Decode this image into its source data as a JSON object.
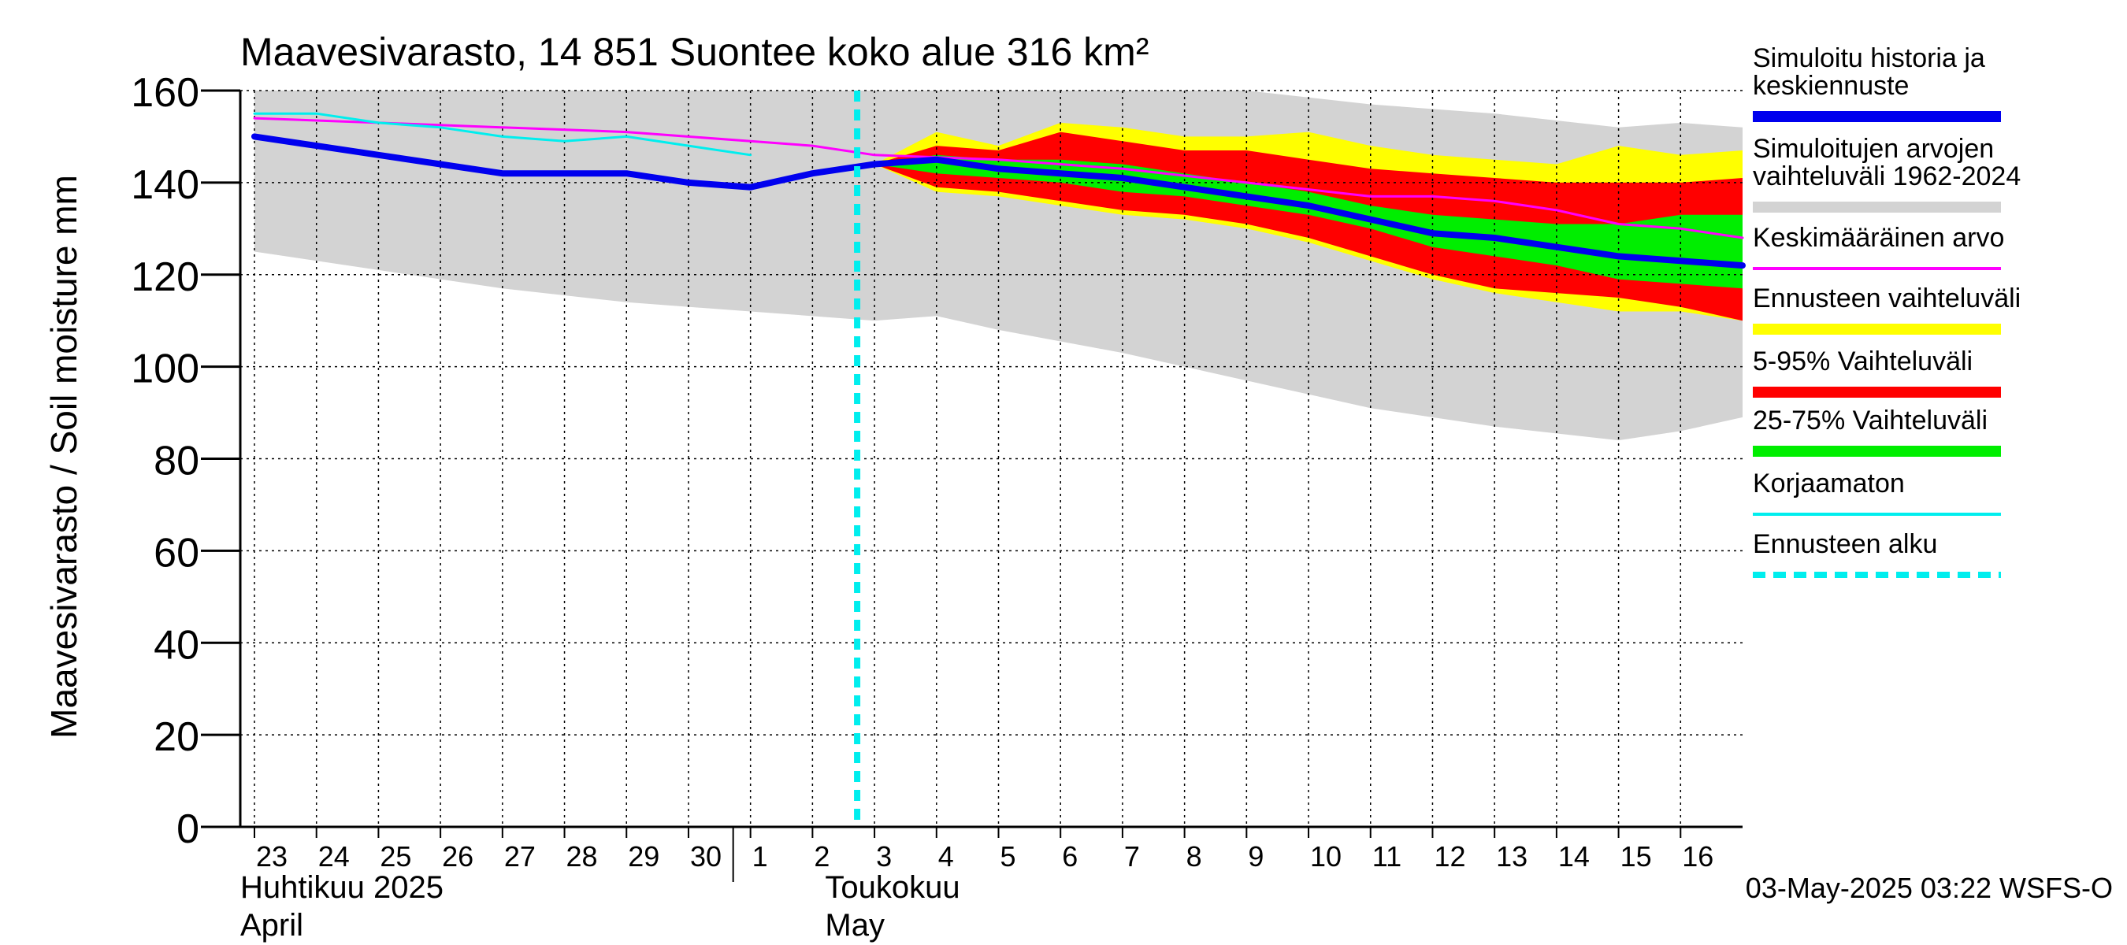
{
  "chart_data": {
    "type": "area",
    "title": "Maavesivarasto, 14 851 Suontee koko alue 316 km²",
    "ylabel": "Maavesivarasto / Soil moisture   mm",
    "ylim": [
      0,
      160
    ],
    "yticks": [
      0,
      20,
      40,
      60,
      80,
      100,
      120,
      140,
      160
    ],
    "xlim": [
      0,
      24
    ],
    "grid": true,
    "x_ticks": [
      {
        "x": 0,
        "label": "23"
      },
      {
        "x": 1,
        "label": "24"
      },
      {
        "x": 2,
        "label": "25"
      },
      {
        "x": 3,
        "label": "26"
      },
      {
        "x": 4,
        "label": "27"
      },
      {
        "x": 5,
        "label": "28"
      },
      {
        "x": 6,
        "label": "29"
      },
      {
        "x": 7,
        "label": "30"
      },
      {
        "x": 8,
        "label": "1"
      },
      {
        "x": 9,
        "label": "2"
      },
      {
        "x": 10,
        "label": "3"
      },
      {
        "x": 11,
        "label": "4"
      },
      {
        "x": 12,
        "label": "5"
      },
      {
        "x": 13,
        "label": "6"
      },
      {
        "x": 14,
        "label": "7"
      },
      {
        "x": 15,
        "label": "8"
      },
      {
        "x": 16,
        "label": "9"
      },
      {
        "x": 17,
        "label": "10"
      },
      {
        "x": 18,
        "label": "11"
      },
      {
        "x": 19,
        "label": "12"
      },
      {
        "x": 20,
        "label": "13"
      },
      {
        "x": 21,
        "label": "14"
      },
      {
        "x": 22,
        "label": "15"
      },
      {
        "x": 23,
        "label": "16"
      }
    ],
    "month_labels": [
      {
        "x": 0,
        "line1": "Huhtikuu  2025",
        "line2": "April"
      },
      {
        "x": 9,
        "line1": "Toukokuu",
        "line2": "May"
      }
    ],
    "month_boundary_x": 8,
    "forecast_start_x": 10,
    "series": [
      {
        "name": "Simuloitujen arvojen vaihteluväli 1962-2024",
        "kind": "band",
        "color": "#d3d3d3",
        "x": [
          0,
          2,
          4,
          6,
          8,
          10,
          11,
          12,
          14,
          16,
          18,
          20,
          22,
          23,
          24
        ],
        "low": [
          125,
          121,
          117,
          114,
          112,
          110,
          111,
          108,
          103,
          97,
          91,
          87,
          84,
          86,
          89
        ],
        "high": [
          160,
          160,
          160,
          160,
          160,
          160,
          160,
          160,
          160,
          160,
          157,
          155,
          152,
          153,
          152
        ]
      },
      {
        "name": "Ennusteen vaihteluväli",
        "kind": "band",
        "color": "#ffff00",
        "x": [
          10,
          11,
          12,
          13,
          14,
          15,
          16,
          17,
          18,
          19,
          20,
          21,
          22,
          23,
          24
        ],
        "low": [
          144,
          138,
          137,
          135,
          133,
          132,
          130,
          127,
          123,
          119,
          116,
          114,
          112,
          112,
          110
        ],
        "high": [
          144,
          151,
          148,
          153,
          152,
          150,
          150,
          151,
          148,
          146,
          145,
          144,
          148,
          146,
          147
        ]
      },
      {
        "name": "5-95% Vaihteluväli",
        "kind": "band",
        "color": "#ff0000",
        "x": [
          10,
          11,
          12,
          13,
          14,
          15,
          16,
          17,
          18,
          19,
          20,
          21,
          22,
          23,
          24
        ],
        "low": [
          144,
          139,
          138,
          136,
          134,
          133,
          131,
          128,
          124,
          120,
          117,
          116,
          115,
          113,
          110
        ],
        "high": [
          144,
          148,
          147,
          151,
          149,
          147,
          147,
          145,
          143,
          142,
          141,
          140,
          140,
          140,
          141
        ]
      },
      {
        "name": "25-75% Vaihteluväli",
        "kind": "band",
        "color": "#00ee00",
        "x": [
          10,
          11,
          12,
          13,
          14,
          15,
          16,
          17,
          18,
          19,
          20,
          21,
          22,
          23,
          24
        ],
        "low": [
          144,
          142,
          141,
          140,
          138,
          137,
          135,
          133,
          130,
          126,
          124,
          122,
          119,
          118,
          117
        ],
        "high": [
          144,
          146,
          145,
          145,
          144,
          142,
          140,
          138,
          135,
          133,
          132,
          131,
          131,
          133,
          133
        ]
      },
      {
        "name": "Keskimääräinen arvo",
        "kind": "line",
        "color": "#ff00ff",
        "width": 3,
        "x": [
          0,
          2,
          4,
          6,
          8,
          9,
          10,
          12,
          14,
          16,
          18,
          19,
          20,
          21,
          22,
          23,
          24
        ],
        "y": [
          154,
          153,
          152,
          151,
          149,
          148,
          146,
          145,
          143,
          140,
          137,
          137,
          136,
          134,
          131,
          130,
          128
        ]
      },
      {
        "name": "Korjaamaton",
        "kind": "line",
        "color": "#00eeee",
        "width": 3,
        "x": [
          0,
          1,
          2,
          3,
          4,
          5,
          6,
          7,
          8
        ],
        "y": [
          155,
          155,
          153,
          152,
          150,
          149,
          150,
          148,
          146
        ]
      },
      {
        "name": "Simuloitu historia ja keskiennuste",
        "kind": "line",
        "color": "#0000ee",
        "width": 8,
        "x": [
          0,
          1,
          2,
          3,
          4,
          5,
          6,
          7,
          8,
          9,
          10,
          11,
          12,
          13,
          14,
          15,
          16,
          17,
          18,
          19,
          20,
          21,
          22,
          23,
          24
        ],
        "y": [
          150,
          148,
          146,
          144,
          142,
          142,
          142,
          140,
          139,
          142,
          144,
          145,
          143,
          142,
          141,
          139,
          137,
          135,
          132,
          129,
          128,
          126,
          124,
          123,
          122
        ]
      }
    ]
  },
  "legend": {
    "placement": "right",
    "items": [
      {
        "label": "Simuloitu historia ja keskiennuste",
        "color": "#0000ee",
        "style": "thick"
      },
      {
        "label": "Simuloitujen arvojen vaihteluväli 1962-2024",
        "color": "#d3d3d3",
        "style": "thick"
      },
      {
        "label": "Keskimääräinen arvo",
        "color": "#ff00ff",
        "style": "thin"
      },
      {
        "label": "Ennusteen vaihteluväli",
        "color": "#ffff00",
        "style": "thick"
      },
      {
        "label": "5-95% Vaihteluväli",
        "color": "#ff0000",
        "style": "thick"
      },
      {
        "label": "25-75% Vaihteluväli",
        "color": "#00ee00",
        "style": "thick"
      },
      {
        "label": "Korjaamaton",
        "color": "#00eeee",
        "style": "thin"
      },
      {
        "label": "Ennusteen alku",
        "color": "#00eeee",
        "style": "dashed"
      }
    ]
  },
  "footer": {
    "timestamp": "03-May-2025 03:22 WSFS-O"
  }
}
